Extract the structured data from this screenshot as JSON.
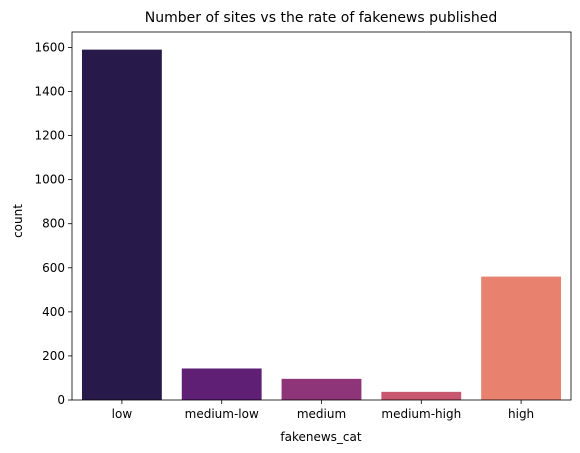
{
  "chart_data": {
    "type": "bar",
    "title": "Number of sites vs the rate of fakenews published",
    "xlabel": "fakenews_cat",
    "ylabel": "count",
    "categories": [
      "low",
      "medium-low",
      "medium",
      "medium-high",
      "high"
    ],
    "values": [
      1590,
      143,
      96,
      37,
      560
    ],
    "colors": [
      "#271a4b",
      "#5e1f75",
      "#8e3479",
      "#c7586f",
      "#e8826f"
    ],
    "ylim": [
      0,
      1670
    ],
    "yticks": [
      0,
      200,
      400,
      600,
      800,
      1000,
      1200,
      1400,
      1600
    ],
    "grid": false
  }
}
